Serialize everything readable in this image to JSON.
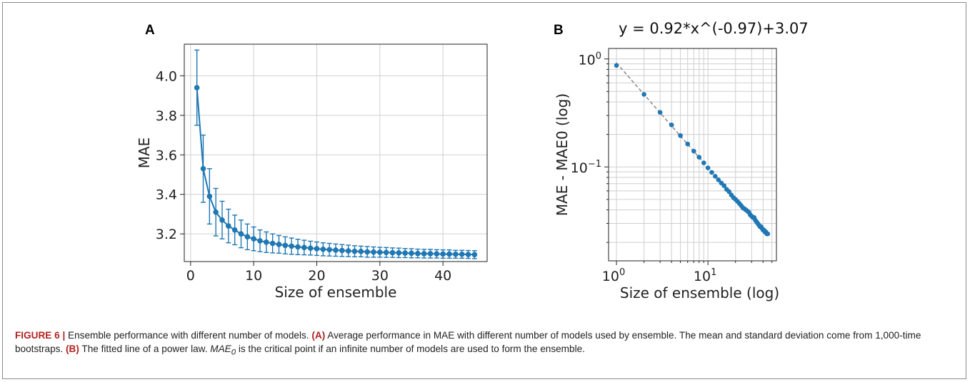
{
  "figure": {
    "panel_a_letter": "A",
    "panel_b_letter": "B",
    "caption": {
      "label": "FIGURE 6 |",
      "intro": " Ensemble performance with different number of models. ",
      "part_a_marker": "(A)",
      "part_a_text": " Average performance in MAE with different number of models used by ensemble. The mean and standard deviation come from 1,000-time bootstraps. ",
      "part_b_marker": "(B)",
      "part_b_text_1": " The fitted line of a power law. ",
      "mae0_base": "MAE",
      "mae0_sub": "0",
      "part_b_text_2": " is the critical point if an infinite number of models are used to form the ensemble."
    }
  },
  "chart_data": [
    {
      "type": "line",
      "panel": "A",
      "title": "",
      "xlabel": "Size of ensemble",
      "ylabel": "MAE",
      "xlim": [
        -1,
        47
      ],
      "ylim": [
        3.06,
        4.16
      ],
      "xticks": [
        0,
        10,
        20,
        30,
        40
      ],
      "yticks": [
        3.2,
        3.4,
        3.6,
        3.8,
        4.0
      ],
      "grid": true,
      "color": "#1f77b4",
      "series": [
        {
          "x": [
            1,
            2,
            3,
            4,
            5,
            6,
            7,
            8,
            9,
            10,
            11,
            12,
            13,
            14,
            15,
            16,
            17,
            18,
            19,
            20,
            21,
            22,
            23,
            24,
            25,
            26,
            27,
            28,
            29,
            30,
            31,
            32,
            33,
            34,
            35,
            36,
            37,
            38,
            39,
            40,
            41,
            42,
            43,
            44,
            45
          ],
          "y": [
            3.94,
            3.53,
            3.39,
            3.31,
            3.27,
            3.24,
            3.22,
            3.2,
            3.185,
            3.175,
            3.165,
            3.158,
            3.152,
            3.147,
            3.142,
            3.138,
            3.134,
            3.131,
            3.128,
            3.125,
            3.122,
            3.12,
            3.118,
            3.116,
            3.114,
            3.112,
            3.111,
            3.109,
            3.108,
            3.107,
            3.106,
            3.105,
            3.104,
            3.103,
            3.102,
            3.101,
            3.1,
            3.1,
            3.099,
            3.098,
            3.098,
            3.097,
            3.097,
            3.096,
            3.095
          ],
          "err": [
            0.19,
            0.17,
            0.14,
            0.12,
            0.095,
            0.085,
            0.075,
            0.07,
            0.065,
            0.06,
            0.055,
            0.052,
            0.048,
            0.045,
            0.043,
            0.041,
            0.039,
            0.037,
            0.035,
            0.034,
            0.033,
            0.032,
            0.031,
            0.03,
            0.029,
            0.028,
            0.027,
            0.027,
            0.026,
            0.025,
            0.025,
            0.024,
            0.024,
            0.023,
            0.023,
            0.022,
            0.022,
            0.022,
            0.021,
            0.021,
            0.021,
            0.02,
            0.02,
            0.02,
            0.02
          ]
        }
      ]
    },
    {
      "type": "scatter",
      "panel": "B",
      "title": "y = 0.92*x^(-0.97)+3.07",
      "xlabel": "Size of ensemble (log)",
      "ylabel": "MAE - MAE0 (log)",
      "xscale": "log",
      "yscale": "log",
      "xlim": [
        0.82,
        56
      ],
      "ylim": [
        0.0135,
        1.25
      ],
      "xtick_labels": [
        {
          "value": 1,
          "base": "10",
          "exp": "0"
        },
        {
          "value": 10,
          "base": "10",
          "exp": "1"
        }
      ],
      "ytick_labels": [
        {
          "value": 1,
          "base": "10",
          "exp": "0"
        },
        {
          "value": 0.1,
          "base": "10",
          "exp": "−1"
        }
      ],
      "grid": true,
      "color": "#1f77b4",
      "fit": {
        "a": 0.92,
        "b": -0.97,
        "c": 3.07,
        "style": "dashed",
        "color": "#888888"
      },
      "x": [
        1,
        2,
        3,
        4,
        5,
        6,
        7,
        8,
        9,
        10,
        11,
        12,
        13,
        14,
        15,
        16,
        17,
        18,
        19,
        20,
        21,
        22,
        23,
        24,
        25,
        26,
        27,
        28,
        29,
        30,
        31,
        32,
        33,
        34,
        35,
        36,
        37,
        38,
        39,
        40,
        41,
        42,
        43,
        44,
        45
      ],
      "y": [
        0.87,
        0.47,
        0.32,
        0.245,
        0.195,
        0.163,
        0.14,
        0.123,
        0.109,
        0.098,
        0.089,
        0.082,
        0.076,
        0.071,
        0.067,
        0.062,
        0.059,
        0.055,
        0.052,
        0.05,
        0.048,
        0.046,
        0.044,
        0.042,
        0.041,
        0.04,
        0.039,
        0.038,
        0.036,
        0.035,
        0.034,
        0.034,
        0.032,
        0.031,
        0.03,
        0.029,
        0.028,
        0.028,
        0.027,
        0.026,
        0.026,
        0.025,
        0.025,
        0.024,
        0.024
      ]
    }
  ]
}
